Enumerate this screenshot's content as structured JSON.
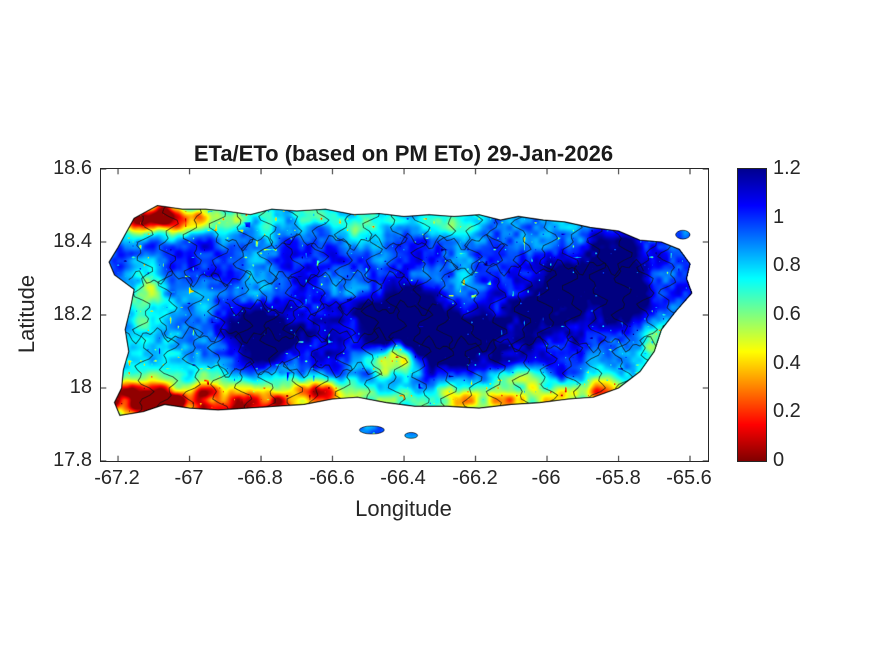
{
  "figure": {
    "background": "#ffffff",
    "text_color": "#262626"
  },
  "chart_data": {
    "type": "heatmap",
    "title": "ETa/ETo (based on PM ETo) 29-Jan-2026",
    "xlabel": "Longitude",
    "ylabel": "Latitude",
    "region": "Puerto Rico with municipal boundaries",
    "x_range": [
      -67.2476,
      -65.5496
    ],
    "y_range": [
      17.8,
      18.6
    ],
    "xtick_values": [
      -67.2,
      -67,
      -66.8,
      -66.6,
      -66.4,
      -66.2,
      -66,
      -65.8,
      -65.6
    ],
    "xtick_labels": [
      "-67.2",
      "-67",
      "-66.8",
      "-66.6",
      "-66.4",
      "-66.2",
      "-66",
      "-65.8",
      "-65.6"
    ],
    "ytick_values": [
      18.6,
      18.4,
      18.2,
      18,
      17.8
    ],
    "ytick_labels": [
      "18.6",
      "18.4",
      "18.2",
      "18",
      "17.8"
    ],
    "colorbar": {
      "min": 0,
      "max": 1.2,
      "tick_labels": [
        "1.2",
        "1",
        "0.8",
        "0.6",
        "0.4",
        "0.2",
        "0"
      ],
      "colormap": "jet_reversed_high_is_blue",
      "gradient_stops": [
        [
          "#00008F",
          0
        ],
        [
          "#0000FF",
          12.5
        ],
        [
          "#00FFFF",
          37.5
        ],
        [
          "#FFFF00",
          62.5
        ],
        [
          "#FF0000",
          87.5
        ],
        [
          "#800000",
          100
        ]
      ]
    },
    "island_outline": [
      [
        -67.155,
        18.465
      ],
      [
        -67.09,
        18.5
      ],
      [
        -67.02,
        18.49
      ],
      [
        -66.955,
        18.49
      ],
      [
        -66.9,
        18.485
      ],
      [
        -66.83,
        18.475
      ],
      [
        -66.77,
        18.49
      ],
      [
        -66.7,
        18.485
      ],
      [
        -66.62,
        18.49
      ],
      [
        -66.54,
        18.475
      ],
      [
        -66.47,
        18.478
      ],
      [
        -66.4,
        18.47
      ],
      [
        -66.33,
        18.475
      ],
      [
        -66.26,
        18.47
      ],
      [
        -66.19,
        18.475
      ],
      [
        -66.13,
        18.46
      ],
      [
        -66.08,
        18.47
      ],
      [
        -66.01,
        18.46
      ],
      [
        -65.95,
        18.455
      ],
      [
        -65.88,
        18.44
      ],
      [
        -65.8,
        18.43
      ],
      [
        -65.74,
        18.405
      ],
      [
        -65.68,
        18.4
      ],
      [
        -65.63,
        18.38
      ],
      [
        -65.6,
        18.34
      ],
      [
        -65.61,
        18.3
      ],
      [
        -65.595,
        18.26
      ],
      [
        -65.64,
        18.21
      ],
      [
        -65.68,
        18.16
      ],
      [
        -65.7,
        18.1
      ],
      [
        -65.74,
        18.045
      ],
      [
        -65.8,
        18.0
      ],
      [
        -65.87,
        17.975
      ],
      [
        -65.94,
        17.97
      ],
      [
        -66.02,
        17.96
      ],
      [
        -66.1,
        17.955
      ],
      [
        -66.19,
        17.945
      ],
      [
        -66.28,
        17.95
      ],
      [
        -66.37,
        17.95
      ],
      [
        -66.45,
        17.96
      ],
      [
        -66.53,
        17.975
      ],
      [
        -66.6,
        17.97
      ],
      [
        -66.68,
        17.955
      ],
      [
        -66.76,
        17.95
      ],
      [
        -66.84,
        17.945
      ],
      [
        -66.92,
        17.94
      ],
      [
        -67.0,
        17.945
      ],
      [
        -67.07,
        17.955
      ],
      [
        -67.13,
        17.935
      ],
      [
        -67.195,
        17.925
      ],
      [
        -67.21,
        17.96
      ],
      [
        -67.19,
        18.0
      ],
      [
        -67.185,
        18.05
      ],
      [
        -67.17,
        18.1
      ],
      [
        -67.18,
        18.16
      ],
      [
        -67.165,
        18.22
      ],
      [
        -67.155,
        18.27
      ],
      [
        -67.21,
        18.31
      ],
      [
        -67.225,
        18.345
      ],
      [
        -67.2,
        18.385
      ]
    ],
    "islets": [
      {
        "cx": -66.49,
        "cy": 17.885,
        "rx": 0.035,
        "ry": 0.011
      },
      {
        "cx": -66.38,
        "cy": 17.87,
        "rx": 0.018,
        "ry": 0.008
      },
      {
        "cx": -65.62,
        "cy": 18.42,
        "rx": 0.02,
        "ry": 0.012
      }
    ],
    "boundary_lons": [
      -67.13,
      -67.06,
      -66.99,
      -66.92,
      -66.85,
      -66.78,
      -66.71,
      -66.64,
      -66.565,
      -66.49,
      -66.42,
      -66.35,
      -66.28,
      -66.21,
      -66.14,
      -66.07,
      -66.0,
      -65.93,
      -65.86,
      -65.79,
      -65.72,
      -65.66
    ],
    "boundary_lat_segments": [
      [
        18.3,
        -67.17,
        -66.35
      ],
      [
        18.145,
        -67.18,
        -66.42
      ],
      [
        18.33,
        -66.3,
        -65.72
      ],
      [
        18.12,
        -66.35,
        -65.66
      ],
      [
        18.4,
        -66.9,
        -66.1
      ],
      [
        18.05,
        -66.95,
        -66.45
      ],
      [
        18.22,
        -66.9,
        -66.3
      ]
    ],
    "field": {
      "base": 0.9,
      "description": "ETa/ETo ratio, mostly 0.8-1.2 (cyan-blue) inland/mountains; low 0-0.4 (red-orange) along south coast and NW corner",
      "wet_centers": [
        {
          "lon": -66.55,
          "lat": 18.15,
          "sx": 0.28,
          "sy": 0.065,
          "a": 0.22
        },
        {
          "lon": -66.17,
          "lat": 18.12,
          "sx": 0.16,
          "sy": 0.09,
          "a": 0.28
        },
        {
          "lon": -65.86,
          "lat": 18.3,
          "sx": 0.13,
          "sy": 0.075,
          "a": 0.33
        },
        {
          "lon": -65.77,
          "lat": 18.21,
          "sx": 0.07,
          "sy": 0.07,
          "a": 0.22
        },
        {
          "lon": -66.45,
          "lat": 18.21,
          "sx": 0.1,
          "sy": 0.05,
          "a": 0.18
        },
        {
          "lon": -66.78,
          "lat": 18.14,
          "sx": 0.1,
          "sy": 0.05,
          "a": 0.2
        },
        {
          "lon": -66.33,
          "lat": 18.14,
          "sx": 0.09,
          "sy": 0.055,
          "a": 0.24
        },
        {
          "lon": -66.02,
          "lat": 18.27,
          "sx": 0.09,
          "sy": 0.06,
          "a": 0.18
        },
        {
          "lon": -66.62,
          "lat": 18.35,
          "sx": 0.12,
          "sy": 0.06,
          "a": 0.12
        }
      ],
      "dry_centers": [
        {
          "lon": -66.95,
          "lat": 17.955,
          "sx": 0.17,
          "sy": 0.038,
          "a": 0.95
        },
        {
          "lon": -67.16,
          "lat": 17.97,
          "sx": 0.06,
          "sy": 0.045,
          "a": 0.75
        },
        {
          "lon": -66.62,
          "lat": 17.98,
          "sx": 0.09,
          "sy": 0.032,
          "a": 0.55
        },
        {
          "lon": -66.18,
          "lat": 17.962,
          "sx": 0.22,
          "sy": 0.03,
          "a": 0.5
        },
        {
          "lon": -65.85,
          "lat": 17.99,
          "sx": 0.07,
          "sy": 0.03,
          "a": 0.45
        },
        {
          "lon": -67.09,
          "lat": 18.465,
          "sx": 0.09,
          "sy": 0.033,
          "a": 0.8
        },
        {
          "lon": -66.86,
          "lat": 18.475,
          "sx": 0.1,
          "sy": 0.028,
          "a": 0.38
        },
        {
          "lon": -66.42,
          "lat": 18.075,
          "sx": 0.05,
          "sy": 0.032,
          "a": 0.6
        },
        {
          "lon": -66.55,
          "lat": 18.45,
          "sx": 0.09,
          "sy": 0.035,
          "a": 0.3
        },
        {
          "lon": -66.28,
          "lat": 18.445,
          "sx": 0.06,
          "sy": 0.03,
          "a": 0.28
        },
        {
          "lon": -67.13,
          "lat": 18.26,
          "sx": 0.035,
          "sy": 0.05,
          "a": 0.3
        },
        {
          "lon": -65.7,
          "lat": 18.12,
          "sx": 0.035,
          "sy": 0.04,
          "a": 0.3
        },
        {
          "lon": -66.07,
          "lat": 18.02,
          "sx": 0.05,
          "sy": 0.03,
          "a": 0.35
        }
      ]
    }
  }
}
